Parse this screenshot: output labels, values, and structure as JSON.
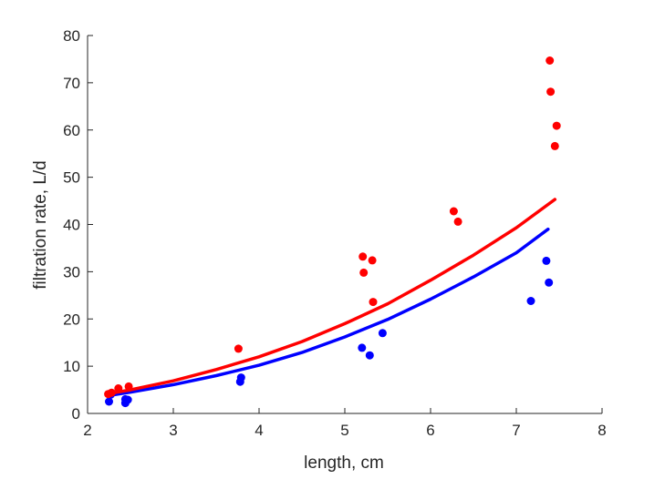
{
  "chart_data": {
    "type": "scatter",
    "title": "",
    "xlabel": "length, cm",
    "ylabel": "filtration rate, L/d",
    "xlim": [
      2,
      8
    ],
    "ylim": [
      0,
      80
    ],
    "xticks": [
      2,
      3,
      4,
      5,
      6,
      7,
      8
    ],
    "yticks": [
      0,
      10,
      20,
      30,
      40,
      50,
      60,
      70,
      80
    ],
    "grid": false,
    "series": [
      {
        "color": "#0000ff",
        "points": [
          [
            2.25,
            2.5
          ],
          [
            2.27,
            4.0
          ],
          [
            2.44,
            2.2
          ],
          [
            2.44,
            3.0
          ],
          [
            2.47,
            2.9
          ],
          [
            3.78,
            6.7
          ],
          [
            3.79,
            7.6
          ],
          [
            5.2,
            13.9
          ],
          [
            5.29,
            12.3
          ],
          [
            5.44,
            17.0
          ],
          [
            7.17,
            23.8
          ],
          [
            7.35,
            32.3
          ],
          [
            7.38,
            27.7
          ]
        ],
        "fit": [
          [
            2.25,
            3.8
          ],
          [
            2.5,
            4.5
          ],
          [
            3.0,
            6.1
          ],
          [
            3.5,
            8.0
          ],
          [
            4.0,
            10.2
          ],
          [
            4.5,
            12.9
          ],
          [
            5.0,
            16.2
          ],
          [
            5.5,
            19.9
          ],
          [
            6.0,
            24.2
          ],
          [
            6.5,
            28.9
          ],
          [
            7.0,
            34.0
          ],
          [
            7.37,
            39.0
          ]
        ]
      },
      {
        "color": "#ff0000",
        "points": [
          [
            2.24,
            4.1
          ],
          [
            2.28,
            4.4
          ],
          [
            2.36,
            5.3
          ],
          [
            2.48,
            5.7
          ],
          [
            3.76,
            13.7
          ],
          [
            5.21,
            33.2
          ],
          [
            5.22,
            29.8
          ],
          [
            5.32,
            32.4
          ],
          [
            5.33,
            23.6
          ],
          [
            6.27,
            42.8
          ],
          [
            6.32,
            40.6
          ],
          [
            7.39,
            74.7
          ],
          [
            7.4,
            68.1
          ],
          [
            7.45,
            56.6
          ],
          [
            7.47,
            60.9
          ]
        ],
        "fit": [
          [
            2.25,
            4.2
          ],
          [
            2.5,
            5.0
          ],
          [
            3.0,
            6.9
          ],
          [
            3.5,
            9.3
          ],
          [
            4.0,
            12.0
          ],
          [
            4.5,
            15.2
          ],
          [
            5.0,
            19.0
          ],
          [
            5.5,
            23.2
          ],
          [
            6.0,
            28.2
          ],
          [
            6.5,
            33.5
          ],
          [
            7.0,
            39.3
          ],
          [
            7.45,
            45.3
          ]
        ]
      }
    ]
  }
}
